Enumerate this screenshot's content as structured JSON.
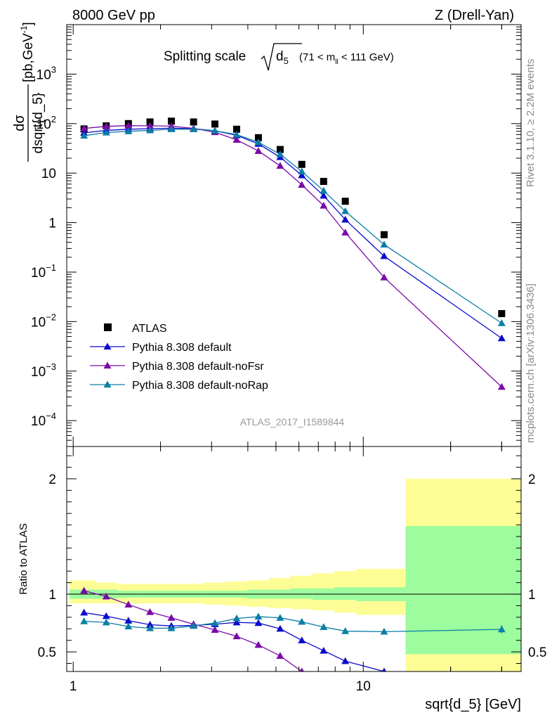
{
  "header": {
    "left": "8000 GeV pp",
    "right": "Z (Drell-Yan)"
  },
  "side_labels": {
    "rivet": "Rivet 3.1.10, ≥ 2.2M events",
    "mcplots": "mcplots.cern.ch [arXiv:1306.3436]"
  },
  "chart_data": {
    "type": "scatter",
    "title": {
      "main": "Splitting scale",
      "var": "d",
      "var_sub": "5",
      "range_pre": "(71 < m",
      "range_sub": "ll",
      "range_post": " < 111 GeV)"
    },
    "analysis_id": "ATLAS_2017_I1589844",
    "xlabel": "sqrt{d_5} [GeV]",
    "x_scale": "log",
    "xlim": [
      0.95,
      35
    ],
    "x_ticks": [
      {
        "value": 1,
        "label": "1"
      },
      {
        "value": 10,
        "label": "10"
      }
    ],
    "main_panel": {
      "ylabel": {
        "numerator": "dσ",
        "denominator": "dsqrt{d_5}",
        "units_pre": " [pb,GeV",
        "units_sup": "-1",
        "units_post": "]"
      },
      "y_scale": "log",
      "ylim": [
        3e-05,
        10000
      ],
      "y_ticks": [
        {
          "value": 0.0001,
          "base": "10",
          "exp": "−4"
        },
        {
          "value": 0.001,
          "base": "10",
          "exp": "−3"
        },
        {
          "value": 0.01,
          "base": "10",
          "exp": "−2"
        },
        {
          "value": 0.1,
          "base": "10",
          "exp": "−1"
        },
        {
          "value": 1,
          "base": "1",
          "exp": ""
        },
        {
          "value": 10,
          "base": "10",
          "exp": ""
        },
        {
          "value": 100,
          "base": "10",
          "exp": "2"
        },
        {
          "value": 1000,
          "base": "10",
          "exp": "3"
        }
      ],
      "legend_position": "lower-left"
    },
    "ratio_panel": {
      "ylabel": "Ratio to ATLAS",
      "ylim": [
        0.33,
        2.28
      ],
      "y_ticks": [
        {
          "value": 0.5,
          "label": "0.5"
        },
        {
          "value": 1,
          "label": "1"
        },
        {
          "value": 2,
          "label": "2"
        }
      ],
      "bands": [
        {
          "x0": 0.97,
          "x1": 1.2,
          "inner": [
            0.96,
            1.04
          ],
          "outer": [
            0.92,
            1.12
          ]
        },
        {
          "x0": 1.2,
          "x1": 1.42,
          "inner": [
            0.96,
            1.04
          ],
          "outer": [
            0.92,
            1.1
          ]
        },
        {
          "x0": 1.42,
          "x1": 1.69,
          "inner": [
            0.97,
            1.03
          ],
          "outer": [
            0.92,
            1.09
          ]
        },
        {
          "x0": 1.69,
          "x1": 2.0,
          "inner": [
            0.97,
            1.03
          ],
          "outer": [
            0.92,
            1.09
          ]
        },
        {
          "x0": 2.0,
          "x1": 2.37,
          "inner": [
            0.97,
            1.03
          ],
          "outer": [
            0.92,
            1.09
          ]
        },
        {
          "x0": 2.37,
          "x1": 2.82,
          "inner": [
            0.97,
            1.03
          ],
          "outer": [
            0.92,
            1.09
          ]
        },
        {
          "x0": 2.82,
          "x1": 3.35,
          "inner": [
            0.97,
            1.03
          ],
          "outer": [
            0.91,
            1.1
          ]
        },
        {
          "x0": 3.35,
          "x1": 3.98,
          "inner": [
            0.97,
            1.03
          ],
          "outer": [
            0.9,
            1.11
          ]
        },
        {
          "x0": 3.98,
          "x1": 4.73,
          "inner": [
            0.96,
            1.04
          ],
          "outer": [
            0.89,
            1.12
          ]
        },
        {
          "x0": 4.73,
          "x1": 5.62,
          "inner": [
            0.96,
            1.04
          ],
          "outer": [
            0.88,
            1.14
          ]
        },
        {
          "x0": 5.62,
          "x1": 6.68,
          "inner": [
            0.96,
            1.05
          ],
          "outer": [
            0.87,
            1.16
          ]
        },
        {
          "x0": 6.68,
          "x1": 7.94,
          "inner": [
            0.95,
            1.05
          ],
          "outer": [
            0.86,
            1.18
          ]
        },
        {
          "x0": 7.94,
          "x1": 9.44,
          "inner": [
            0.95,
            1.06
          ],
          "outer": [
            0.84,
            1.2
          ]
        },
        {
          "x0": 9.44,
          "x1": 14.0,
          "inner": [
            0.94,
            1.06
          ],
          "outer": [
            0.82,
            1.22
          ]
        },
        {
          "x0": 14.0,
          "x1": 35,
          "inner": [
            0.48,
            1.59
          ],
          "outer": [
            0.33,
            2.0
          ]
        }
      ]
    },
    "series": [
      {
        "name": "ATLAS",
        "marker": "square",
        "color": "#000000",
        "x": [
          1.09,
          1.3,
          1.55,
          1.84,
          2.18,
          2.6,
          3.08,
          3.66,
          4.35,
          5.17,
          6.14,
          7.3,
          8.67,
          11.8,
          30.0
        ],
        "y": [
          78,
          90,
          100,
          108,
          112,
          108,
          98,
          77,
          52,
          30,
          15,
          6.8,
          2.7,
          0.57,
          0.0145
        ]
      },
      {
        "name": "Pythia 8.308 default",
        "marker": "triangle",
        "color": "#0a0acc",
        "x": [
          1.09,
          1.3,
          1.55,
          1.84,
          2.18,
          2.6,
          3.08,
          3.66,
          4.35,
          5.17,
          6.14,
          7.3,
          8.67,
          11.8,
          30.0
        ],
        "y": [
          65,
          73,
          77,
          79,
          81,
          79,
          72,
          58,
          39,
          21,
          9.0,
          3.5,
          1.15,
          0.21,
          0.0046
        ],
        "ratio": [
          0.84,
          0.81,
          0.77,
          0.735,
          0.725,
          0.73,
          0.74,
          0.755,
          0.75,
          0.7,
          0.6,
          0.51,
          0.42,
          0.33
        ]
      },
      {
        "name": "Pythia 8.308 default-noFsr",
        "marker": "triangle",
        "color": "#7a0aa8",
        "x": [
          1.09,
          1.3,
          1.55,
          1.84,
          2.18,
          2.6,
          3.08,
          3.66,
          4.35,
          5.17,
          6.14,
          7.3,
          8.67,
          11.8,
          30.0
        ],
        "y": [
          80,
          88,
          91,
          90,
          89,
          80,
          67,
          47,
          28,
          14,
          5.8,
          2.2,
          0.63,
          0.078,
          0.00048
        ],
        "ratio": [
          1.03,
          0.98,
          0.91,
          0.845,
          0.795,
          0.74,
          0.69,
          0.635,
          0.56,
          0.465,
          0.33
        ]
      },
      {
        "name": "Pythia 8.308 default-noRap",
        "marker": "triangle",
        "color": "#0b7fa6",
        "x": [
          1.09,
          1.3,
          1.55,
          1.84,
          2.18,
          2.6,
          3.08,
          3.66,
          4.35,
          5.17,
          6.14,
          7.3,
          8.67,
          11.8,
          30.0
        ],
        "y": [
          57,
          66,
          70,
          73,
          77,
          77,
          72,
          60,
          42,
          24,
          10.8,
          4.4,
          1.7,
          0.36,
          0.0093
        ],
        "ratio": [
          0.765,
          0.755,
          0.72,
          0.705,
          0.705,
          0.725,
          0.75,
          0.79,
          0.805,
          0.795,
          0.76,
          0.715,
          0.68,
          0.675,
          0.695
        ]
      }
    ]
  }
}
